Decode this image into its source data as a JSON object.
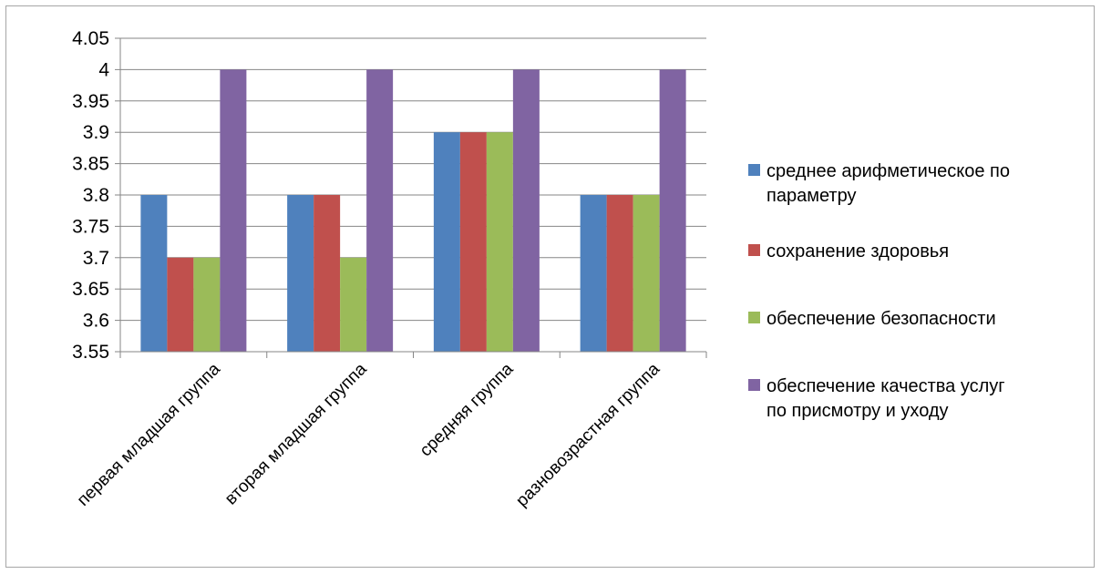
{
  "chart_data": {
    "type": "bar",
    "title": "",
    "xlabel": "",
    "ylabel": "",
    "ylim": [
      3.55,
      4.05
    ],
    "yticks": [
      "3.55",
      "3.6",
      "3.65",
      "3.7",
      "3.75",
      "3.8",
      "3.85",
      "3.9",
      "3.95",
      "4",
      "4.05"
    ],
    "grid": true,
    "legend_position": "right",
    "categories": [
      "первая младшая группа",
      "вторая младшая группа",
      "средняя группа",
      "разновозрастная группа"
    ],
    "series": [
      {
        "name": "среднее арифметическое по параметру",
        "color": "#4f81bd",
        "values": [
          3.8,
          3.8,
          3.9,
          3.8
        ]
      },
      {
        "name": "сохранение здоровья",
        "color": "#c0504d",
        "values": [
          3.7,
          3.8,
          3.9,
          3.8
        ]
      },
      {
        "name": "обеспечение безопасности",
        "color": "#9bbb59",
        "values": [
          3.7,
          3.7,
          3.9,
          3.8
        ]
      },
      {
        "name": "обеспечение качества услуг по присмотру и уходу",
        "color": "#8064a2",
        "values": [
          4.0,
          4.0,
          4.0,
          4.0
        ]
      }
    ]
  }
}
